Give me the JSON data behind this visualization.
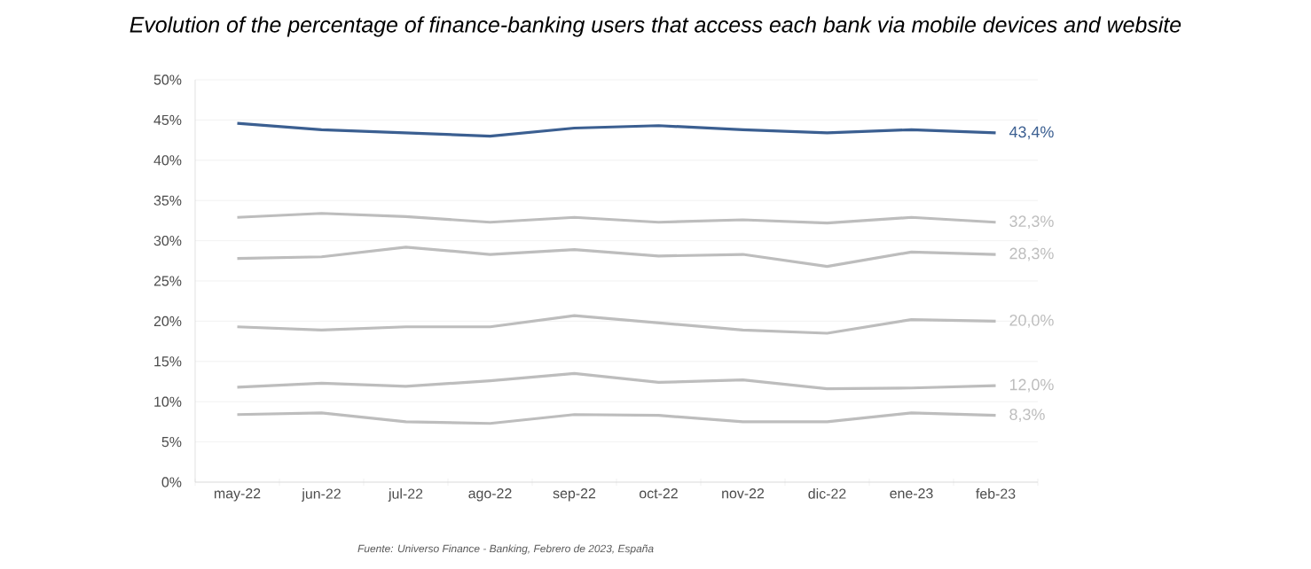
{
  "chart_data": {
    "type": "line",
    "title": "Evolution of the percentage of finance-banking users that access each bank via mobile devices and website",
    "categories": [
      "may-22",
      "jun-22",
      "jul-22",
      "ago-22",
      "sep-22",
      "oct-22",
      "nov-22",
      "dic-22",
      "ene-23",
      "feb-23"
    ],
    "series": [
      {
        "color": "#3b5f91",
        "values": [
          44.6,
          43.8,
          43.4,
          43.0,
          44.0,
          44.3,
          43.8,
          43.4,
          43.8,
          43.4
        ],
        "value_labels": [
          null,
          null,
          null,
          null,
          null,
          null,
          null,
          null,
          null,
          "43,4%"
        ]
      },
      {
        "color": "#bdbdbd",
        "values": [
          32.9,
          33.4,
          33.0,
          32.3,
          32.9,
          32.3,
          32.6,
          32.2,
          32.9,
          32.3
        ],
        "value_labels": [
          null,
          null,
          null,
          null,
          null,
          null,
          null,
          null,
          null,
          "32,3%"
        ]
      },
      {
        "color": "#bdbdbd",
        "values": [
          27.8,
          28.0,
          29.2,
          28.3,
          28.9,
          28.1,
          28.3,
          26.8,
          28.6,
          28.3
        ],
        "value_labels": [
          null,
          null,
          null,
          null,
          null,
          null,
          null,
          null,
          null,
          "28,3%"
        ]
      },
      {
        "color": "#bdbdbd",
        "values": [
          19.3,
          18.9,
          19.3,
          19.3,
          20.7,
          19.8,
          18.9,
          18.5,
          20.2,
          20.0
        ],
        "value_labels": [
          null,
          null,
          null,
          null,
          null,
          null,
          null,
          null,
          null,
          "20,0%"
        ]
      },
      {
        "color": "#bdbdbd",
        "values": [
          11.8,
          12.3,
          11.9,
          12.6,
          13.5,
          12.4,
          12.7,
          11.6,
          11.7,
          12.0
        ],
        "value_labels": [
          null,
          null,
          null,
          null,
          null,
          null,
          null,
          null,
          null,
          "12,0%"
        ]
      },
      {
        "color": "#bdbdbd",
        "values": [
          8.4,
          8.6,
          7.5,
          7.3,
          8.4,
          8.3,
          7.5,
          7.5,
          8.6,
          8.3
        ],
        "value_labels": [
          null,
          null,
          null,
          null,
          null,
          null,
          null,
          null,
          null,
          "8,3%"
        ]
      }
    ],
    "ylim": [
      0,
      50
    ],
    "yticks": [
      {
        "value": 0,
        "label": "0%"
      },
      {
        "value": 5,
        "label": "5%"
      },
      {
        "value": 10,
        "label": "10%"
      },
      {
        "value": 15,
        "label": "15%"
      },
      {
        "value": 20,
        "label": "20%"
      },
      {
        "value": 25,
        "label": "25%"
      },
      {
        "value": 30,
        "label": "30%"
      },
      {
        "value": 35,
        "label": "35%"
      },
      {
        "value": 40,
        "label": "40%"
      },
      {
        "value": 45,
        "label": "45%"
      },
      {
        "value": 50,
        "label": "50%"
      }
    ],
    "grid": "y",
    "marker": "none",
    "line_style": "solid",
    "annotations": [
      "Fuente:  Universo Finance - Banking, Febrero de 2023, España"
    ]
  }
}
